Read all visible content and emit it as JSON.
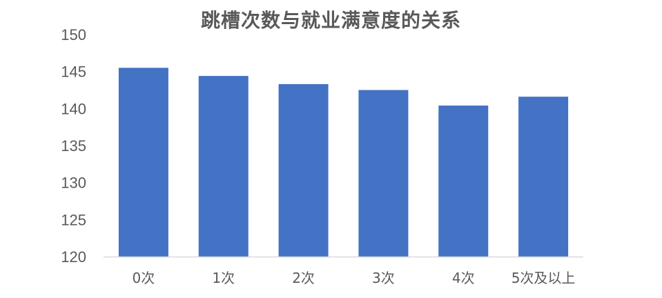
{
  "chart_data": {
    "type": "bar",
    "title": "跳槽次数与就业满意度的关系",
    "xlabel": "",
    "ylabel": "",
    "categories": [
      "0次",
      "1次",
      "2次",
      "3次",
      "4次",
      "5次及以上"
    ],
    "values": [
      145.5,
      144.4,
      143.3,
      142.5,
      140.4,
      141.6
    ],
    "ylim": [
      120,
      150
    ],
    "yticks": [
      120,
      125,
      130,
      135,
      140,
      145,
      150
    ],
    "grid": false,
    "legend": "none",
    "bar_color": "#4472C4",
    "axis_color": "#D9D9D9",
    "text_color": "#595959"
  }
}
